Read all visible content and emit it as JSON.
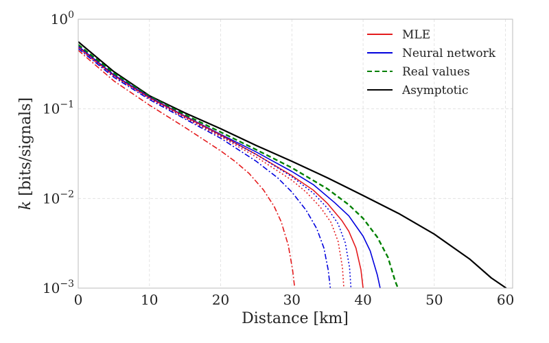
{
  "chart_data": {
    "type": "line",
    "title": "",
    "xlabel": "Distance [km]",
    "ylabel_italic": "k",
    "ylabel_rest": " [bits/signals]",
    "xlim": [
      0,
      61
    ],
    "ylim": [
      0.001,
      1
    ],
    "yscale": "log",
    "grid": true,
    "legend_position": "top-right",
    "x_ticks": [
      0,
      10,
      20,
      30,
      40,
      50,
      60
    ],
    "x_tick_labels": [
      "0",
      "10",
      "20",
      "30",
      "40",
      "50",
      "60"
    ],
    "y_ticks": [
      0.001,
      0.01,
      0.1,
      1
    ],
    "y_tick_labels": [
      {
        "base": "10",
        "exp": "−3"
      },
      {
        "base": "10",
        "exp": "−2"
      },
      {
        "base": "10",
        "exp": "−1"
      },
      {
        "base": "10",
        "exp": "0"
      }
    ],
    "legend": [
      {
        "label": "MLE",
        "color": "#e41a1c",
        "dash": "solid"
      },
      {
        "label": "Neural network",
        "color": "#0000dd",
        "dash": "solid"
      },
      {
        "label": "Real values",
        "color": "#008000",
        "dash": "dashed"
      },
      {
        "label": "Asymptotic",
        "color": "#000000",
        "dash": "solid"
      }
    ],
    "series": [
      {
        "name": "Asymptotic",
        "color": "#000000",
        "dash": "solid",
        "width": 2.2,
        "x": [
          0,
          5,
          10,
          15,
          20,
          25,
          30,
          35,
          40,
          45,
          50,
          55,
          58,
          60.1
        ],
        "y": [
          0.56,
          0.26,
          0.14,
          0.09,
          0.06,
          0.039,
          0.026,
          0.017,
          0.0108,
          0.0068,
          0.004,
          0.0021,
          0.0013,
          0.001
        ]
      },
      {
        "name": "Real values",
        "color": "#008000",
        "dash": "dashed",
        "width": 2.4,
        "x": [
          0,
          5,
          10,
          15,
          20,
          25,
          30,
          35,
          38,
          40,
          42,
          43.5,
          44.5,
          44.9
        ],
        "y": [
          0.52,
          0.25,
          0.138,
          0.086,
          0.055,
          0.035,
          0.022,
          0.0128,
          0.0085,
          0.006,
          0.0037,
          0.0022,
          0.0012,
          0.001
        ]
      },
      {
        "name": "Neural network solid",
        "color": "#0000dd",
        "dash": "solid",
        "width": 1.6,
        "x": [
          0,
          5,
          10,
          15,
          20,
          25,
          30,
          33,
          36,
          38,
          40,
          41,
          42,
          42.4
        ],
        "y": [
          0.5,
          0.24,
          0.135,
          0.083,
          0.052,
          0.033,
          0.02,
          0.0143,
          0.009,
          0.0064,
          0.0038,
          0.0026,
          0.0014,
          0.001
        ]
      },
      {
        "name": "MLE solid",
        "color": "#e41a1c",
        "dash": "solid",
        "width": 1.6,
        "x": [
          0,
          5,
          10,
          15,
          20,
          25,
          30,
          33,
          35,
          37,
          38,
          39,
          39.7,
          40
        ],
        "y": [
          0.49,
          0.235,
          0.133,
          0.082,
          0.051,
          0.031,
          0.018,
          0.0124,
          0.0088,
          0.0057,
          0.0043,
          0.0028,
          0.0016,
          0.001
        ]
      },
      {
        "name": "Neural network dotted",
        "color": "#0000dd",
        "dash": "dotted",
        "width": 1.6,
        "x": [
          0,
          5,
          10,
          15,
          20,
          25,
          30,
          33,
          35,
          36.5,
          37.5,
          38.1,
          38.3
        ],
        "y": [
          0.49,
          0.235,
          0.132,
          0.08,
          0.05,
          0.031,
          0.0175,
          0.0115,
          0.0078,
          0.0052,
          0.0032,
          0.0017,
          0.001
        ]
      },
      {
        "name": "MLE dotted",
        "color": "#e41a1c",
        "dash": "dotted",
        "width": 1.6,
        "x": [
          0,
          5,
          10,
          15,
          20,
          25,
          30,
          32,
          34,
          35.5,
          36.5,
          37.1,
          37.3
        ],
        "y": [
          0.48,
          0.23,
          0.13,
          0.079,
          0.049,
          0.029,
          0.016,
          0.0118,
          0.008,
          0.0054,
          0.0033,
          0.0017,
          0.001
        ]
      },
      {
        "name": "Neural network dashdot",
        "color": "#0000dd",
        "dash": "dashdot",
        "width": 1.6,
        "x": [
          0,
          5,
          10,
          15,
          20,
          25,
          28,
          30,
          32,
          33.5,
          34.5,
          35.1,
          35.4
        ],
        "y": [
          0.47,
          0.225,
          0.127,
          0.077,
          0.047,
          0.026,
          0.017,
          0.0118,
          0.0074,
          0.0046,
          0.0028,
          0.0016,
          0.001
        ]
      },
      {
        "name": "MLE dashdot",
        "color": "#e41a1c",
        "dash": "dashdot",
        "width": 1.6,
        "x": [
          0,
          5,
          10,
          15,
          20,
          22,
          24,
          26,
          27.5,
          28.5,
          29.5,
          30.1,
          30.4
        ],
        "y": [
          0.45,
          0.205,
          0.11,
          0.062,
          0.034,
          0.026,
          0.019,
          0.0125,
          0.0082,
          0.0055,
          0.003,
          0.0016,
          0.001
        ]
      }
    ]
  }
}
